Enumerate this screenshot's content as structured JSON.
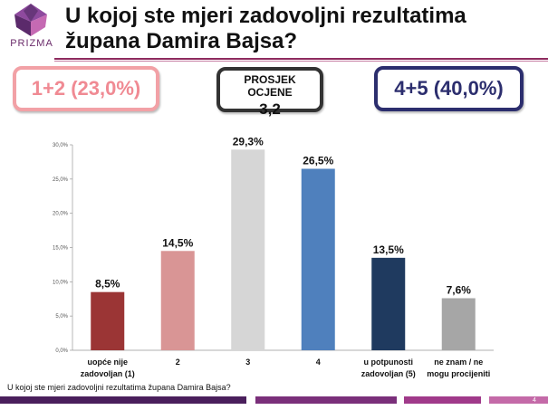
{
  "logo": {
    "name": "PRIZMA",
    "colors": [
      "#5b2a6b",
      "#8e4a9e",
      "#c56ab3",
      "#3a1e4e"
    ]
  },
  "title": "U kojoj ste mjeri zadovoljni rezultatima župana Damira Bajsa?",
  "summary": {
    "left": "1+2 (23,0%)",
    "middle_label": "PROSJEK OCJENE",
    "middle_value": "3,2",
    "right": "4+5 (40,0%)"
  },
  "chart_data": {
    "type": "bar",
    "categories": [
      [
        "uopće nije",
        "zadovoljan (1)"
      ],
      [
        "2"
      ],
      [
        "3"
      ],
      [
        "4"
      ],
      [
        "u potpunosti",
        "zadovoljan (5)"
      ],
      [
        "ne znam / ne",
        "mogu procijeniti"
      ]
    ],
    "values": [
      8.5,
      14.5,
      29.3,
      26.5,
      13.5,
      7.6
    ],
    "value_labels": [
      "8,5%",
      "14,5%",
      "29,3%",
      "26,5%",
      "13,5%",
      "7,6%"
    ],
    "colors": [
      "#9b3535",
      "#d99595",
      "#d6d6d6",
      "#4f80bd",
      "#1f3a5f",
      "#a6a6a6"
    ],
    "y_ticks": [
      "0,0%",
      "5,0%",
      "10,0%",
      "15,0%",
      "20,0%",
      "25,0%",
      "30,0%"
    ],
    "ylim": [
      0,
      30
    ],
    "grid": false
  },
  "question": "U kojoj ste mjeri zadovoljni rezultatima župana Damira Bajsa?",
  "footer": {
    "page_number": "4",
    "strip_colors": [
      "#4a1f5c",
      "#7a2f7a",
      "#a03a8a",
      "#c46aa8"
    ]
  }
}
